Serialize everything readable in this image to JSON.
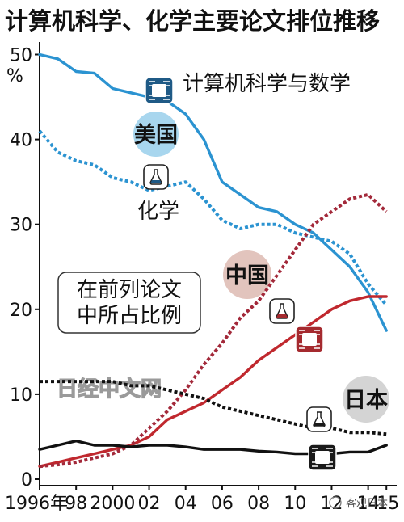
{
  "header": {
    "title": "计算机科学、化学主要论文排位推移"
  },
  "y_axis": {
    "unit": "%"
  },
  "annotations": {
    "cs_label": "计算机科学与数学",
    "chem_label": "化学",
    "us_badge": "美国",
    "china_badge": "中国",
    "japan_badge": "日本",
    "note_line1": "在前列论文",
    "note_line2": "中所占比例",
    "watermark": "日经中文网",
    "source": "客观日本"
  },
  "chart_data": {
    "type": "line",
    "x": [
      1996,
      1997,
      1998,
      1999,
      2000,
      2001,
      2002,
      2003,
      2004,
      2005,
      2006,
      2007,
      2008,
      2009,
      2010,
      2011,
      2012,
      2013,
      2014,
      2015
    ],
    "x_tick_labels": [
      "1996年",
      "98",
      "2000",
      "02",
      "04",
      "06",
      "08",
      "10",
      "12",
      "14",
      "15"
    ],
    "x_ticks": [
      1996,
      1998,
      2000,
      2002,
      2004,
      2006,
      2008,
      2010,
      2012,
      2014,
      2015
    ],
    "y_ticks": [
      0,
      10,
      20,
      30,
      40,
      50
    ],
    "ylim": [
      0,
      51
    ],
    "xlim": [
      1996,
      2015.3
    ],
    "series": [
      {
        "key": "us_cs",
        "style": "solid",
        "color": "#2b93d1",
        "values": [
          50,
          49.5,
          48,
          47.8,
          46,
          45.5,
          45,
          44.5,
          43,
          40,
          35,
          33.5,
          32,
          31.5,
          30,
          29,
          27,
          25,
          22,
          17.5
        ]
      },
      {
        "key": "us_chem",
        "style": "dotted",
        "color": "#2b93d1",
        "values": [
          41,
          38.5,
          37.5,
          37,
          35.5,
          35,
          34,
          34.5,
          35,
          33,
          30.5,
          29.5,
          30,
          30,
          29,
          28.5,
          28,
          26.5,
          23,
          20.5
        ]
      },
      {
        "key": "china_cs",
        "style": "solid",
        "color": "#c0282e",
        "values": [
          1.5,
          2,
          2.5,
          3,
          3.5,
          4,
          5,
          7,
          8,
          9,
          10.5,
          12,
          14,
          15.5,
          17,
          18.5,
          20,
          21,
          21.5,
          21.5
        ]
      },
      {
        "key": "china_chem",
        "style": "dotted",
        "color": "#a3293a",
        "values": [
          1.5,
          1.7,
          2,
          2.5,
          3,
          4,
          6,
          8,
          10.5,
          13.5,
          16,
          19,
          21,
          24,
          27,
          30,
          31.5,
          33,
          33.5,
          31.5
        ]
      },
      {
        "key": "japan_chem",
        "style": "dotted",
        "color": "#111111",
        "values": [
          11.5,
          11.5,
          11.5,
          11.5,
          11.5,
          11,
          11,
          10.5,
          10,
          9.5,
          8.5,
          8,
          7.5,
          7,
          6.5,
          6,
          6,
          5.5,
          5.5,
          5.3
        ]
      },
      {
        "key": "japan_cs",
        "style": "solid",
        "color": "#111111",
        "values": [
          3.5,
          4,
          4.5,
          4,
          4,
          3.8,
          4,
          4,
          3.8,
          3.5,
          3.5,
          3.5,
          3.3,
          3.2,
          3,
          3,
          3,
          3.2,
          3.2,
          4
        ]
      }
    ]
  }
}
